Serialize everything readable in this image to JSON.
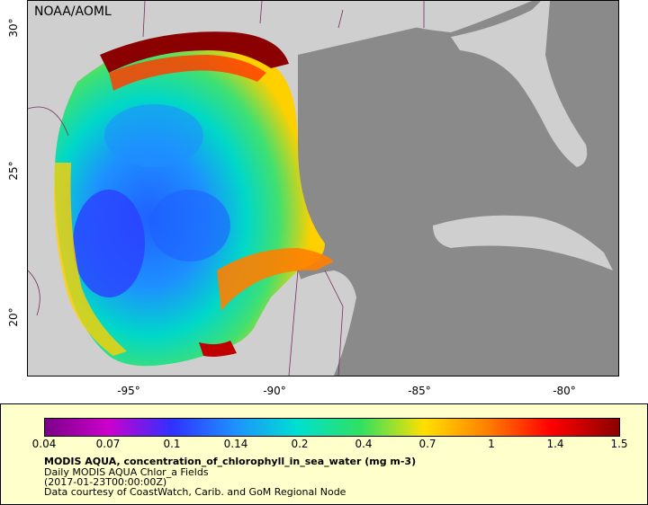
{
  "map": {
    "watermark": "NOAA/AOML",
    "lat_ticks": [
      "30°",
      "25°",
      "20°"
    ],
    "lon_ticks": [
      "-95°",
      "-90°",
      "-85°",
      "-80°"
    ],
    "colors": {
      "land": "#cfcfcf",
      "no_data_water": "#8a8a8a",
      "boundary": "#7a2d5a"
    }
  },
  "legend": {
    "colorbar_labels": [
      "0.04",
      "0.07",
      "0.1",
      "0.14",
      "0.2",
      "0.4",
      "0.7",
      "1",
      "1.4",
      "1.5"
    ],
    "colorbar_colors": [
      "#7a0088",
      "#cc00cc",
      "#3030ff",
      "#1e90ff",
      "#00e0d0",
      "#30e060",
      "#ffe000",
      "#ff8000",
      "#ff0000",
      "#8b0000"
    ],
    "title": "MODIS AQUA, concentration_of_chlorophyll_in_sea_water (mg m-3)",
    "line1": "Daily MODIS AQUA Chlor_a Fields",
    "line2": "(2017-01-23T00:00:00Z)",
    "line3": "Data courtesy of CoastWatch, Carib. and GoM Regional Node"
  }
}
